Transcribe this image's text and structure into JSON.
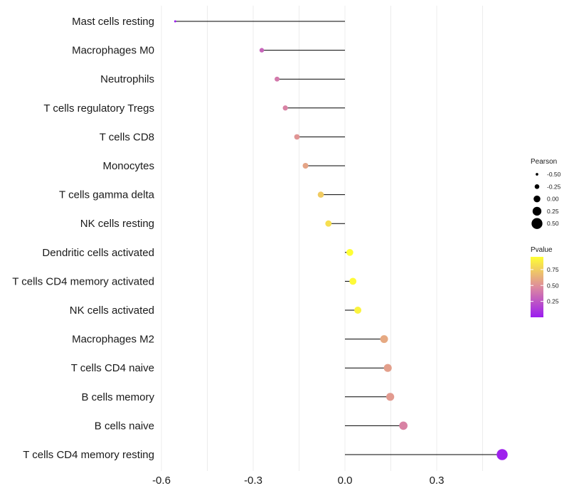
{
  "chart_data": {
    "type": "lollipop",
    "xlabel": "",
    "ylabel": "",
    "xlim": [
      -0.62,
      0.53
    ],
    "xticks": [
      -0.6,
      -0.3,
      0.0,
      0.3
    ],
    "xtick_labels": [
      "-0.6",
      "-0.3",
      "0.0",
      "0.3"
    ],
    "categories": [
      "Mast cells resting",
      "Macrophages M0",
      "Neutrophils",
      "T cells regulatory  Tregs",
      "T cells CD8",
      "Monocytes",
      "T cells gamma delta",
      "NK cells resting",
      "Dendritic cells activated",
      "T cells CD4 memory activated",
      "NK cells activated",
      "Macrophages M2",
      "T cells CD4 naive",
      "B cells memory",
      "B cells naive",
      "T cells CD4 memory resting"
    ],
    "pearson": [
      -0.555,
      -0.272,
      -0.222,
      -0.195,
      -0.157,
      -0.129,
      -0.079,
      -0.054,
      0.016,
      0.026,
      0.042,
      0.128,
      0.14,
      0.148,
      0.191,
      0.514
    ],
    "pvalue": [
      0.01,
      0.31,
      0.4,
      0.44,
      0.52,
      0.58,
      0.74,
      0.82,
      0.95,
      0.93,
      0.9,
      0.6,
      0.56,
      0.54,
      0.44,
      0.02
    ],
    "legend_size": {
      "title": "Pearson",
      "values": [
        -0.5,
        -0.25,
        0.0,
        0.25,
        0.5
      ],
      "labels": [
        "-0.50",
        "-0.25",
        "0.00",
        "0.25",
        "0.50"
      ]
    },
    "legend_color": {
      "title": "Pvalue",
      "tick_values": [
        0.75,
        0.5,
        0.25
      ],
      "tick_labels": [
        "0.75",
        "0.50",
        "0.25"
      ],
      "range": [
        0.0,
        0.95
      ],
      "low_color": "#9b1cf0",
      "mid_color": "#dd8a9e",
      "high_color": "#ffff33"
    },
    "gridlines": true,
    "line_color": "#000000"
  }
}
